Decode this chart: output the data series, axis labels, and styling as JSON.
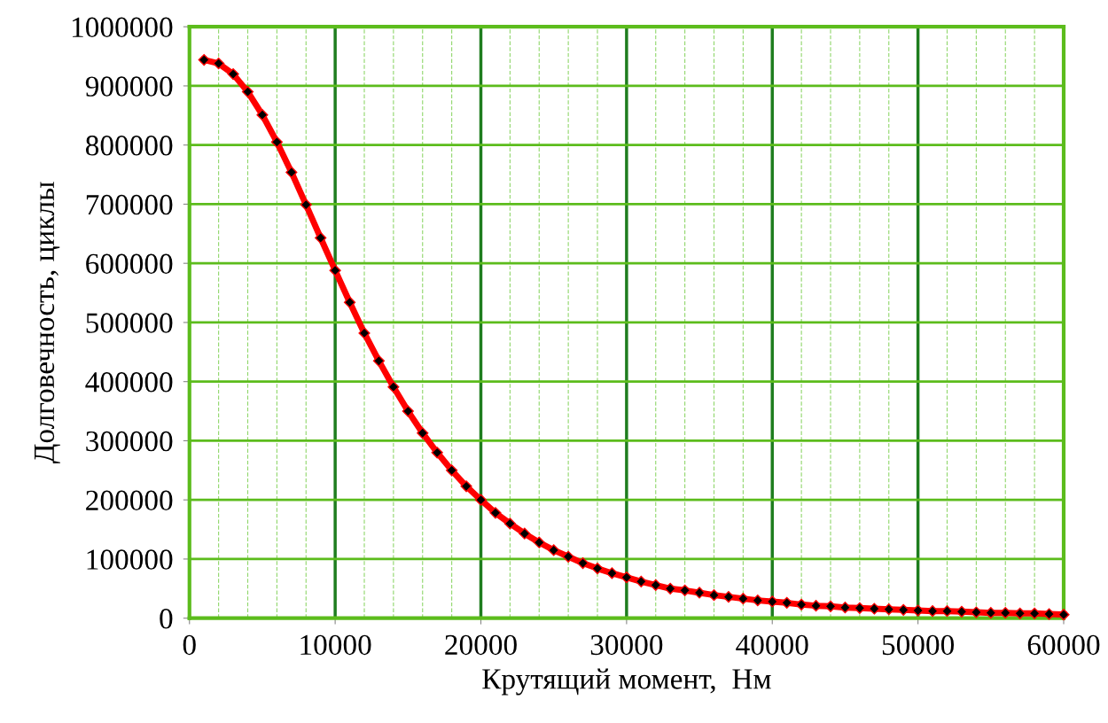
{
  "chart_data": {
    "type": "line",
    "xlabel": "Крутящий момент,  Нм",
    "ylabel": "Долговечность, циклы",
    "x": [
      1000,
      2000,
      3000,
      4000,
      5000,
      6000,
      7000,
      8000,
      9000,
      10000,
      11000,
      12000,
      13000,
      14000,
      15000,
      16000,
      17000,
      18000,
      19000,
      20000,
      21000,
      22000,
      23000,
      24000,
      25000,
      26000,
      27000,
      28000,
      29000,
      30000,
      31000,
      32000,
      33000,
      34000,
      35000,
      36000,
      37000,
      38000,
      39000,
      40000,
      41000,
      42000,
      43000,
      44000,
      45000,
      46000,
      47000,
      48000,
      49000,
      50000,
      51000,
      52000,
      53000,
      54000,
      55000,
      56000,
      57000,
      58000,
      59000,
      60000
    ],
    "series": [
      {
        "color": "#ff0000",
        "values": [
          944000,
          938000,
          920000,
          890000,
          851000,
          805000,
          754000,
          699000,
          643000,
          588000,
          534000,
          482000,
          435000,
          391000,
          350000,
          313000,
          280000,
          250000,
          223000,
          200000,
          178000,
          160000,
          143000,
          128000,
          115000,
          104000,
          93000,
          84000,
          76000,
          69000,
          62000,
          56000,
          50000,
          47000,
          43000,
          39000,
          36000,
          33000,
          30000,
          28000,
          26000,
          23000,
          21000,
          20000,
          18000,
          17000,
          16000,
          15000,
          14000,
          13000,
          12000,
          12000,
          11000,
          10000,
          9000,
          9000,
          8000,
          8000,
          7000,
          6000
        ]
      }
    ],
    "xlim": [
      0,
      60000
    ],
    "xticks": [
      0,
      {
        "value": 2000,
        "label": null
      },
      {
        "value": 4000,
        "label": null
      },
      {
        "value": 6000,
        "label": null
      },
      {
        "value": 8000,
        "label": null
      },
      10000,
      {
        "value": 12000,
        "label": null
      },
      {
        "value": 14000,
        "label": null
      },
      {
        "value": 16000,
        "label": null
      },
      {
        "value": 18000,
        "label": null
      },
      20000,
      {
        "value": 22000,
        "label": null
      },
      {
        "value": 24000,
        "label": null
      },
      {
        "value": 26000,
        "label": null
      },
      {
        "value": 28000,
        "label": null
      },
      30000,
      {
        "value": 32000,
        "label": null
      },
      {
        "value": 34000,
        "label": null
      },
      {
        "value": 36000,
        "label": null
      },
      {
        "value": 38000,
        "label": null
      },
      40000,
      {
        "value": 42000,
        "label": null
      },
      {
        "value": 44000,
        "label": null
      },
      {
        "value": 46000,
        "label": null
      },
      {
        "value": 48000,
        "label": null
      },
      50000,
      {
        "value": 52000,
        "label": null
      },
      {
        "value": 54000,
        "label": null
      },
      {
        "value": 56000,
        "label": null
      },
      {
        "value": 58000,
        "label": null
      },
      60000
    ],
    "ylim": [
      0,
      1000000
    ],
    "yticks": [
      0,
      100000,
      200000,
      300000,
      400000,
      500000,
      600000,
      700000,
      800000,
      900000,
      1000000
    ],
    "grid": true,
    "marker": "diamond",
    "line_style": "solid"
  }
}
